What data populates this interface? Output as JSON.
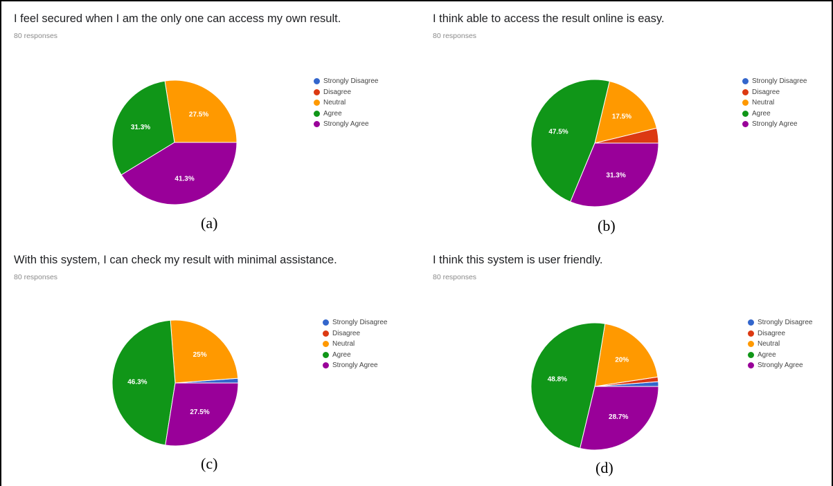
{
  "legend_labels": [
    "Strongly Disagree",
    "Disagree",
    "Neutral",
    "Agree",
    "Strongly Agree"
  ],
  "colors": {
    "strongly_disagree": "#3366cc",
    "disagree": "#dc3912",
    "neutral": "#ff9900",
    "agree": "#109618",
    "strongly_agree": "#990099"
  },
  "chart_data": [
    {
      "type": "pie",
      "title": "I feel secured when I am the only one can access my own result.",
      "subtitle": "80 responses",
      "caption": "(a)",
      "categories": [
        "Strongly Disagree",
        "Disagree",
        "Neutral",
        "Agree",
        "Strongly Agree"
      ],
      "values": [
        0,
        0,
        27.5,
        31.3,
        41.3
      ],
      "data_labels": [
        "",
        "",
        "27.5%",
        "31.3%",
        "41.3%"
      ],
      "legend": "right"
    },
    {
      "type": "pie",
      "title": "I think able to access the result online is easy.",
      "subtitle": "80 responses",
      "caption": "(b)",
      "categories": [
        "Strongly Disagree",
        "Disagree",
        "Neutral",
        "Agree",
        "Strongly Agree"
      ],
      "values": [
        0,
        3.8,
        17.5,
        47.5,
        31.3
      ],
      "data_labels": [
        "",
        "",
        "17.5%",
        "47.5%",
        "31.3%"
      ],
      "legend": "right"
    },
    {
      "type": "pie",
      "title": "With this system, I can check my result with minimal assistance.",
      "subtitle": "80 responses",
      "caption": "(c)",
      "categories": [
        "Strongly Disagree",
        "Disagree",
        "Neutral",
        "Agree",
        "Strongly Agree"
      ],
      "values": [
        1.2,
        0,
        25,
        46.3,
        27.5
      ],
      "data_labels": [
        "",
        "",
        "25%",
        "46.3%",
        "27.5%"
      ],
      "legend": "right"
    },
    {
      "type": "pie",
      "title": "I think this system is user friendly.",
      "subtitle": "80 responses",
      "caption": "(d)",
      "categories": [
        "Strongly Disagree",
        "Disagree",
        "Neutral",
        "Agree",
        "Strongly Agree"
      ],
      "values": [
        1.2,
        1.2,
        20,
        48.8,
        28.7
      ],
      "data_labels": [
        "",
        "",
        "20%",
        "48.8%",
        "28.7%"
      ],
      "legend": "right"
    }
  ]
}
